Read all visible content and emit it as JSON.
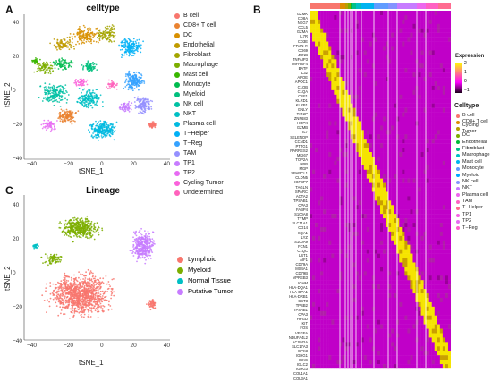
{
  "panel_a": {
    "letter": "A",
    "title": "celltype",
    "xlabel": "tSNE_1",
    "ylabel": "tSNE_2",
    "xticks": [
      "−40",
      "−20",
      "0",
      "20",
      "40"
    ],
    "yticks": [
      "40",
      "20",
      "0",
      "−20",
      "−40"
    ],
    "legend": [
      {
        "label": "B cell",
        "color": "#F8766D"
      },
      {
        "label": "CD8+ T cell",
        "color": "#EA8331"
      },
      {
        "label": "DC",
        "color": "#D89000"
      },
      {
        "label": "Endothelial",
        "color": "#C09B00"
      },
      {
        "label": "Fibroblast",
        "color": "#A3A500"
      },
      {
        "label": "Macrophage",
        "color": "#7CAE00"
      },
      {
        "label": "Mast cell",
        "color": "#39B600"
      },
      {
        "label": "Monocyte",
        "color": "#00BB4E"
      },
      {
        "label": "Myeloid",
        "color": "#00BF7D"
      },
      {
        "label": "NK cell",
        "color": "#00C1A3"
      },
      {
        "label": "NKT",
        "color": "#00BFC4"
      },
      {
        "label": "Plasma cell",
        "color": "#00BAE0"
      },
      {
        "label": "T−Helper",
        "color": "#00B0F6"
      },
      {
        "label": "T−Reg",
        "color": "#35A2FF"
      },
      {
        "label": "TAM",
        "color": "#9590FF"
      },
      {
        "label": "TP1",
        "color": "#C77CFF"
      },
      {
        "label": "TP2",
        "color": "#E76BF3"
      },
      {
        "label": "Cycling Tumor",
        "color": "#FA62DB"
      },
      {
        "label": "Undetermined",
        "color": "#FF62BC"
      }
    ]
  },
  "panel_b": {
    "letter": "B",
    "genes": [
      "GZMK",
      "CD8A",
      "NKG7",
      "CCL5",
      "GZMA",
      "IL7R",
      "CD3E",
      "CD40LG",
      "CD69",
      "JUNB",
      "TNFAIP3",
      "TNFRSF4",
      "BATF",
      "IL32",
      "APOE",
      "APOC1",
      "C1QB",
      "C1QA",
      "CSF1",
      "KLRD1",
      "KLRB1",
      "GNLY",
      "TXNIP",
      "ZNF683",
      "HOPX",
      "GZMB",
      "IL7",
      "SELENOP",
      "CCND1",
      "PTTG1",
      "RARRES2",
      "MKI67",
      "TOP2A",
      "HBB",
      "MGP",
      "SPARCL1",
      "CLDN5",
      "IGFBP7",
      "TAGLN",
      "SPARC",
      "ACTA2",
      "TPSAB1",
      "CPA3",
      "FABP4",
      "S100A8",
      "TYMP",
      "SLC11A1",
      "CD14",
      "SQA1",
      "LYZ",
      "S100A9",
      "FCN1",
      "C1QC",
      "LST1",
      "AIF1",
      "CD79A",
      "MS4A1",
      "CD79B",
      "VPREB3",
      "IGHM",
      "HLA-DQA1",
      "HLA-DPA1",
      "HLA-DRB1",
      "CST3",
      "TPSB2",
      "TPSAB1",
      "CPA3",
      "HPGD",
      "KIT",
      "FOS",
      "VEGFA",
      "NDUFA4L2",
      "ACSM2A",
      "SLC17A3",
      "GPX3",
      "IGHG1",
      "IGKC",
      "IGLC2",
      "IGHG3",
      "COL1A1",
      "COL3A1"
    ],
    "colorbar_title": "Expression",
    "colorbar_ticks": [
      "2",
      "1",
      "0",
      "−1"
    ],
    "celltype_title": "Celltype",
    "celltype_legend": [
      {
        "label": "B cell",
        "color": "#F8766D"
      },
      {
        "label": "CD8+ T cell",
        "color": "#DE8C00"
      },
      {
        "label": "Cycling Tumor",
        "color": "#B79F00"
      },
      {
        "label": "DC",
        "color": "#7CAE00"
      },
      {
        "label": "Endothelial",
        "color": "#00BA38"
      },
      {
        "label": "Fibroblast",
        "color": "#00C08B"
      },
      {
        "label": "Macrophage",
        "color": "#00BFC4"
      },
      {
        "label": "Mast cell",
        "color": "#00B4F0"
      },
      {
        "label": "Monocyte",
        "color": "#619CFF"
      },
      {
        "label": "Myeloid",
        "color": "#00A9FF"
      },
      {
        "label": "NK cell",
        "color": "#8494FF"
      },
      {
        "label": "NKT",
        "color": "#C77CFF"
      },
      {
        "label": "Plasma cell",
        "color": "#ED68ED"
      },
      {
        "label": "TAM",
        "color": "#FF61C3"
      },
      {
        "label": "T−Helper",
        "color": "#FF6C91"
      },
      {
        "label": "TP1",
        "color": "#F564E3"
      },
      {
        "label": "TP2",
        "color": "#E76BF3"
      },
      {
        "label": "T−Reg",
        "color": "#FF61CC"
      }
    ]
  },
  "panel_c": {
    "letter": "C",
    "title": "Lineage",
    "xlabel": "tSNE_1",
    "ylabel": "tSNE_2",
    "xticks": [
      "−40",
      "−20",
      "0",
      "20",
      "40"
    ],
    "yticks": [
      "40",
      "20",
      "0",
      "−20",
      "−40"
    ],
    "legend": [
      {
        "label": "Lymphoid",
        "color": "#F8766D"
      },
      {
        "label": "Myeloid",
        "color": "#7CAE00"
      },
      {
        "label": "Normal Tissue",
        "color": "#00BFC4"
      },
      {
        "label": "Putative Tumor",
        "color": "#C77CFF"
      }
    ]
  }
}
